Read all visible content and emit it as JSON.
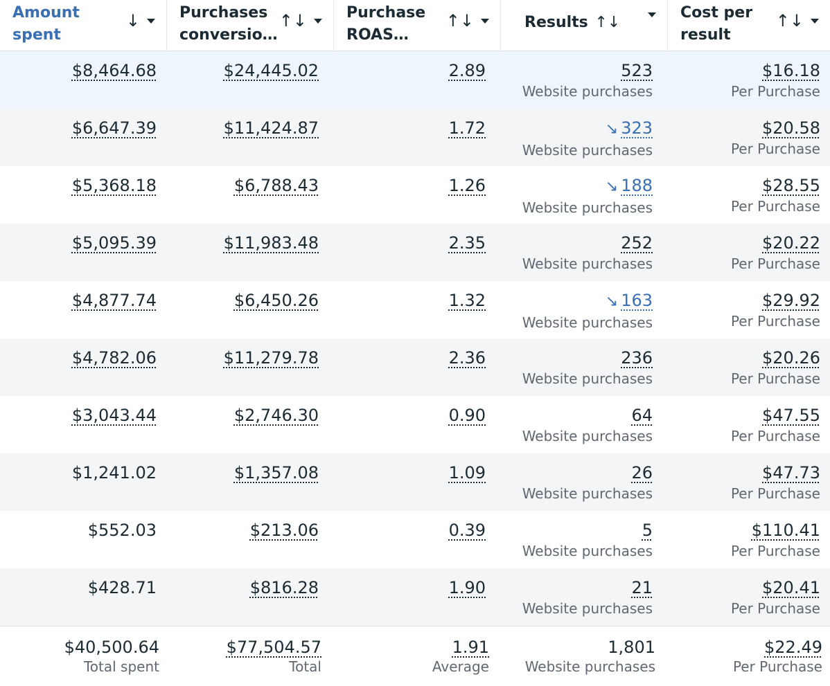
{
  "headers": [
    {
      "line1": "Amount",
      "line2": "spent",
      "sort_icon": "↓"
    },
    {
      "line1": "Purchases",
      "line2": "conversio…",
      "sort_icon": "↑↓"
    },
    {
      "line1": "Purchase",
      "line2": "ROAS…",
      "sort_icon": "↑↓"
    },
    {
      "label": "Results",
      "sort_icon": "↑↓"
    },
    {
      "line1": "Cost per",
      "line2": "result",
      "sort_icon": "↑↓"
    }
  ],
  "rows": [
    {
      "spent": "$8,464.68",
      "conv": "$24,445.02",
      "roas": "2.89",
      "results": "523",
      "results_type": "Website purchases",
      "cost": "$16.18",
      "cost_type": "Per Purchase"
    },
    {
      "spent": "$6,647.39",
      "conv": "$11,424.87",
      "roas": "1.72",
      "results": "323",
      "results_type": "Website purchases",
      "cost": "$20.58",
      "cost_type": "Per Purchase",
      "trend_icon": "↘"
    },
    {
      "spent": "$5,368.18",
      "conv": "$6,788.43",
      "roas": "1.26",
      "results": "188",
      "results_type": "Website purchases",
      "cost": "$28.55",
      "cost_type": "Per Purchase",
      "trend_icon": "↘"
    },
    {
      "spent": "$5,095.39",
      "conv": "$11,983.48",
      "roas": "2.35",
      "results": "252",
      "results_type": "Website purchases",
      "cost": "$20.22",
      "cost_type": "Per Purchase"
    },
    {
      "spent": "$4,877.74",
      "conv": "$6,450.26",
      "roas": "1.32",
      "results": "163",
      "results_type": "Website purchases",
      "cost": "$29.92",
      "cost_type": "Per Purchase",
      "trend_icon": "↘"
    },
    {
      "spent": "$4,782.06",
      "conv": "$11,279.78",
      "roas": "2.36",
      "results": "236",
      "results_type": "Website purchases",
      "cost": "$20.26",
      "cost_type": "Per Purchase"
    },
    {
      "spent": "$3,043.44",
      "conv": "$2,746.30",
      "roas": "0.90",
      "results": "64",
      "results_type": "Website purchases",
      "cost": "$47.55",
      "cost_type": "Per Purchase"
    },
    {
      "spent": "$1,241.02",
      "conv": "$1,357.08",
      "roas": "1.09",
      "results": "26",
      "results_type": "Website purchases",
      "cost": "$47.73",
      "cost_type": "Per Purchase"
    },
    {
      "spent": "$552.03",
      "conv": "$213.06",
      "roas": "0.39",
      "results": "5",
      "results_type": "Website purchases",
      "cost": "$110.41",
      "cost_type": "Per Purchase"
    },
    {
      "spent": "$428.71",
      "conv": "$816.28",
      "roas": "1.90",
      "results": "21",
      "results_type": "Website purchases",
      "cost": "$20.41",
      "cost_type": "Per Purchase"
    }
  ],
  "totals": {
    "spent": "$40,500.64",
    "spent_label": "Total spent",
    "conv": "$77,504.57",
    "conv_label": "Total",
    "roas": "1.91",
    "roas_label": "Average",
    "results": "1,801",
    "results_label": "Website purchases",
    "cost": "$22.49",
    "cost_label": "Per Purchase"
  },
  "colors": {
    "accent": "#3a6fb4",
    "highlight_row": "#eef5fd",
    "alt_row": "#f4f5f6"
  }
}
